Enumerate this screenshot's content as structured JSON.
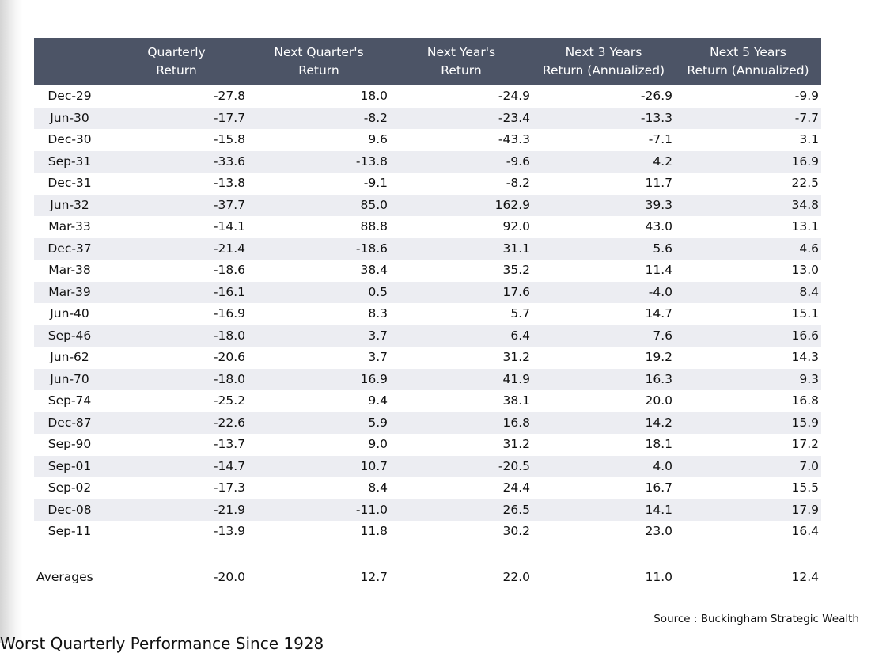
{
  "table": {
    "headers": [
      {
        "line1": "",
        "line2": ""
      },
      {
        "line1": "Quarterly",
        "line2": "Return"
      },
      {
        "line1": "Next Quarter's",
        "line2": "Return"
      },
      {
        "line1": "Next Year's",
        "line2": "Return"
      },
      {
        "line1": "Next 3 Years",
        "line2": "Return (Annualized)"
      },
      {
        "line1": "Next 5 Years",
        "line2": "Return (Annualized)"
      }
    ],
    "rows": [
      [
        "Dec-29",
        "-27.8",
        "18.0",
        "-24.9",
        "-26.9",
        "-9.9"
      ],
      [
        "Jun-30",
        "-17.7",
        "-8.2",
        "-23.4",
        "-13.3",
        "-7.7"
      ],
      [
        "Dec-30",
        "-15.8",
        "9.6",
        "-43.3",
        "-7.1",
        "3.1"
      ],
      [
        "Sep-31",
        "-33.6",
        "-13.8",
        "-9.6",
        "4.2",
        "16.9"
      ],
      [
        "Dec-31",
        "-13.8",
        "-9.1",
        "-8.2",
        "11.7",
        "22.5"
      ],
      [
        "Jun-32",
        "-37.7",
        "85.0",
        "162.9",
        "39.3",
        "34.8"
      ],
      [
        "Mar-33",
        "-14.1",
        "88.8",
        "92.0",
        "43.0",
        "13.1"
      ],
      [
        "Dec-37",
        "-21.4",
        "-18.6",
        "31.1",
        "5.6",
        "4.6"
      ],
      [
        "Mar-38",
        "-18.6",
        "38.4",
        "35.2",
        "11.4",
        "13.0"
      ],
      [
        "Mar-39",
        "-16.1",
        "0.5",
        "17.6",
        "-4.0",
        "8.4"
      ],
      [
        "Jun-40",
        "-16.9",
        "8.3",
        "5.7",
        "14.7",
        "15.1"
      ],
      [
        "Sep-46",
        "-18.0",
        "3.7",
        "6.4",
        "7.6",
        "16.6"
      ],
      [
        "Jun-62",
        "-20.6",
        "3.7",
        "31.2",
        "19.2",
        "14.3"
      ],
      [
        "Jun-70",
        "-18.0",
        "16.9",
        "41.9",
        "16.3",
        "9.3"
      ],
      [
        "Sep-74",
        "-25.2",
        "9.4",
        "38.1",
        "20.0",
        "16.8"
      ],
      [
        "Dec-87",
        "-22.6",
        "5.9",
        "16.8",
        "14.2",
        "15.9"
      ],
      [
        "Sep-90",
        "-13.7",
        "9.0",
        "31.2",
        "18.1",
        "17.2"
      ],
      [
        "Sep-01",
        "-14.7",
        "10.7",
        "-20.5",
        "4.0",
        "7.0"
      ],
      [
        "Sep-02",
        "-17.3",
        "8.4",
        "24.4",
        "16.7",
        "15.5"
      ],
      [
        "Dec-08",
        "-21.9",
        "-11.0",
        "26.5",
        "14.1",
        "17.9"
      ],
      [
        "Sep-11",
        "-13.9",
        "11.8",
        "30.2",
        "23.0",
        "16.4"
      ]
    ],
    "averages": [
      "Averages",
      "-20.0",
      "12.7",
      "22.0",
      "11.0",
      "12.4"
    ]
  },
  "source_note": "Source : Buckingham Strategic Wealth",
  "caption_partial": "Worst Quarterly Performance Since 1928",
  "colors": {
    "header_bg": "#4c5466",
    "stripe_bg": "#ecedf2"
  }
}
